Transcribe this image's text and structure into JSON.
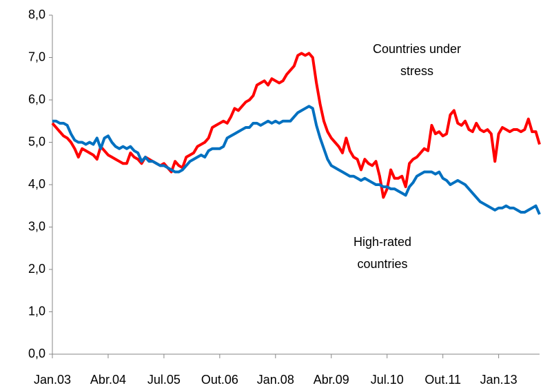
{
  "chart_data": {
    "type": "line",
    "categories": [
      "Jan.03",
      null,
      null,
      null,
      null,
      null,
      null,
      null,
      null,
      null,
      null,
      null,
      null,
      null,
      null,
      "Abr.04",
      null,
      null,
      null,
      null,
      null,
      null,
      null,
      null,
      null,
      null,
      null,
      null,
      null,
      null,
      "Jul.05",
      null,
      null,
      null,
      null,
      null,
      null,
      null,
      null,
      null,
      null,
      null,
      null,
      null,
      null,
      "Out.06",
      null,
      null,
      null,
      null,
      null,
      null,
      null,
      null,
      null,
      null,
      null,
      null,
      null,
      null,
      "Jan.08",
      null,
      null,
      null,
      null,
      null,
      null,
      null,
      null,
      null,
      null,
      null,
      null,
      null,
      null,
      "Abr.09",
      null,
      null,
      null,
      null,
      null,
      null,
      null,
      null,
      null,
      null,
      null,
      null,
      null,
      null,
      "Jul.10",
      null,
      null,
      null,
      null,
      null,
      null,
      null,
      null,
      null,
      null,
      null,
      null,
      null,
      null,
      "Out.11",
      null,
      null,
      null,
      null,
      null,
      null,
      null,
      null,
      null,
      null,
      null,
      null,
      null,
      null,
      "Jan.13",
      null,
      null,
      null,
      null,
      null,
      null,
      null,
      null,
      null,
      null,
      null
    ],
    "series": [
      {
        "color": "#ff0000",
        "values": [
          5.45,
          5.35,
          5.25,
          5.15,
          5.1,
          5.0,
          4.85,
          4.65,
          4.85,
          4.8,
          4.75,
          4.7,
          4.6,
          4.9,
          4.8,
          4.7,
          4.65,
          4.6,
          4.55,
          4.5,
          4.5,
          4.75,
          4.65,
          4.6,
          4.5,
          4.65,
          4.6,
          4.55,
          4.5,
          4.45,
          4.5,
          4.4,
          4.3,
          4.55,
          4.45,
          4.4,
          4.65,
          4.7,
          4.75,
          4.9,
          4.95,
          5.0,
          5.1,
          5.35,
          5.4,
          5.45,
          5.5,
          5.45,
          5.6,
          5.8,
          5.75,
          5.85,
          5.95,
          6.0,
          6.1,
          6.35,
          6.4,
          6.45,
          6.35,
          6.5,
          6.45,
          6.4,
          6.45,
          6.6,
          6.7,
          6.8,
          7.05,
          7.1,
          7.05,
          7.1,
          7.0,
          6.4,
          5.9,
          5.5,
          5.25,
          5.1,
          5.0,
          4.9,
          4.75,
          5.1,
          4.8,
          4.65,
          4.6,
          4.35,
          4.6,
          4.5,
          4.45,
          4.55,
          4.2,
          3.7,
          3.9,
          4.35,
          4.15,
          4.15,
          4.2,
          3.95,
          4.5,
          4.6,
          4.65,
          4.75,
          4.85,
          4.8,
          5.4,
          5.2,
          5.25,
          5.15,
          5.2,
          5.65,
          5.75,
          5.45,
          5.4,
          5.5,
          5.3,
          5.25,
          5.45,
          5.3,
          5.25,
          5.3,
          5.2,
          4.55,
          5.2,
          5.35,
          5.3,
          5.25,
          5.3,
          5.3,
          5.25,
          5.3,
          5.55,
          5.25,
          5.25,
          4.95
        ]
      },
      {
        "color": "#0070c0",
        "values": [
          5.5,
          5.5,
          5.45,
          5.45,
          5.4,
          5.2,
          5.05,
          5.0,
          5.0,
          4.95,
          5.0,
          4.95,
          5.1,
          4.85,
          5.1,
          5.15,
          5.0,
          4.9,
          4.85,
          4.9,
          4.85,
          4.9,
          4.8,
          4.75,
          4.55,
          4.65,
          4.55,
          4.55,
          4.5,
          4.45,
          4.45,
          4.4,
          4.35,
          4.3,
          4.3,
          4.35,
          4.45,
          4.55,
          4.6,
          4.65,
          4.7,
          4.65,
          4.8,
          4.85,
          4.85,
          4.85,
          4.9,
          5.1,
          5.15,
          5.2,
          5.25,
          5.3,
          5.35,
          5.35,
          5.45,
          5.45,
          5.4,
          5.45,
          5.5,
          5.45,
          5.5,
          5.45,
          5.5,
          5.5,
          5.5,
          5.6,
          5.7,
          5.75,
          5.8,
          5.85,
          5.8,
          5.4,
          5.1,
          4.85,
          4.6,
          4.45,
          4.4,
          4.35,
          4.3,
          4.25,
          4.2,
          4.2,
          4.15,
          4.1,
          4.15,
          4.1,
          4.05,
          4.0,
          4.0,
          3.95,
          3.95,
          3.9,
          3.9,
          3.85,
          3.8,
          3.75,
          3.95,
          4.05,
          4.2,
          4.25,
          4.3,
          4.3,
          4.3,
          4.25,
          4.3,
          4.15,
          4.1,
          4.0,
          4.05,
          4.1,
          4.05,
          4.0,
          3.9,
          3.8,
          3.7,
          3.6,
          3.55,
          3.5,
          3.45,
          3.4,
          3.45,
          3.45,
          3.5,
          3.45,
          3.45,
          3.4,
          3.35,
          3.35,
          3.4,
          3.45,
          3.5,
          3.3
        ]
      }
    ],
    "annotations": [
      [
        "Countries under",
        "stress"
      ],
      [
        "High-rated",
        "countries"
      ]
    ],
    "ylim": [
      0,
      8
    ],
    "yticks": [
      {
        "value": 0,
        "label": "0,0"
      },
      {
        "value": 1,
        "label": "1,0"
      },
      {
        "value": 2,
        "label": "2,0"
      },
      {
        "value": 3,
        "label": "3,0"
      },
      {
        "value": 4,
        "label": "4,0"
      },
      {
        "value": 5,
        "label": "5,0"
      },
      {
        "value": 6,
        "label": "6,0"
      },
      {
        "value": 7,
        "label": "7,0"
      },
      {
        "value": 8,
        "label": "8,0"
      }
    ],
    "grid": false
  }
}
